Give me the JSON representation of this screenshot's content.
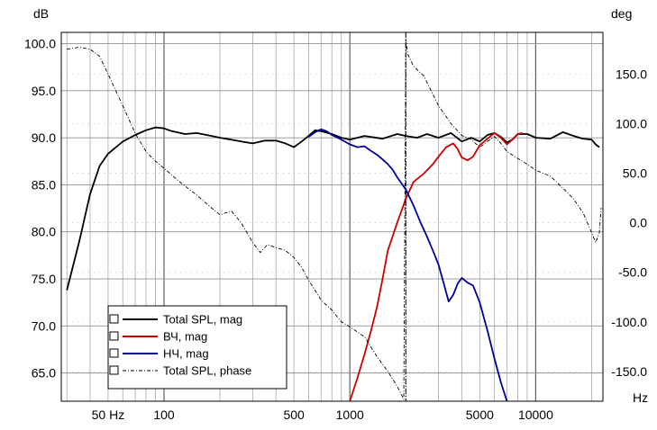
{
  "chart_data": {
    "type": "line",
    "x_axis": {
      "scale": "log",
      "range": [
        28,
        23000
      ],
      "unit_label": "Hz",
      "tick_labels": [
        {
          "value": 50,
          "label": "50 Hz"
        },
        {
          "value": 100,
          "label": "100"
        },
        {
          "value": 500,
          "label": "500"
        },
        {
          "value": 1000,
          "label": "1000"
        },
        {
          "value": 5000,
          "label": "5000"
        },
        {
          "value": 10000,
          "label": "10000"
        }
      ]
    },
    "y_left": {
      "unit_label": "dB",
      "range": [
        62,
        101.2
      ],
      "ticks": [
        65,
        70,
        75,
        80,
        85,
        90,
        95,
        100
      ],
      "tick_labels": [
        "65.0",
        "70.0",
        "75.0",
        "80.0",
        "85.0",
        "90.0",
        "95.0",
        "100.0"
      ]
    },
    "y_right": {
      "unit_label": "deg",
      "range": [
        -180,
        192
      ],
      "ticks": [
        -150,
        -100,
        -50,
        0,
        50,
        100,
        150
      ],
      "tick_labels": [
        "-150.0",
        "-100.0",
        "-50.0",
        "0.0",
        "50.0",
        "100.0",
        "150.0"
      ]
    },
    "grid": true,
    "cursor_x": 2000,
    "legend_position": "bottom-left",
    "series": [
      {
        "name": "Total SPL, mag",
        "axis": "left",
        "color": "#000000",
        "points": [
          [
            30,
            73.8
          ],
          [
            35,
            79
          ],
          [
            40,
            84
          ],
          [
            45,
            87
          ],
          [
            50,
            88.3
          ],
          [
            60,
            89.6
          ],
          [
            70,
            90.3
          ],
          [
            80,
            90.8
          ],
          [
            90,
            91.1
          ],
          [
            100,
            91.0
          ],
          [
            110,
            90.7
          ],
          [
            130,
            90.4
          ],
          [
            150,
            90.5
          ],
          [
            180,
            90.2
          ],
          [
            200,
            90.0
          ],
          [
            230,
            89.8
          ],
          [
            260,
            89.6
          ],
          [
            300,
            89.4
          ],
          [
            350,
            89.7
          ],
          [
            400,
            89.7
          ],
          [
            450,
            89.4
          ],
          [
            500,
            89.0
          ],
          [
            550,
            89.6
          ],
          [
            600,
            90.2
          ],
          [
            650,
            90.8
          ],
          [
            700,
            90.7
          ],
          [
            800,
            90.4
          ],
          [
            900,
            90.0
          ],
          [
            1000,
            89.8
          ],
          [
            1200,
            90.2
          ],
          [
            1500,
            89.9
          ],
          [
            1800,
            90.4
          ],
          [
            2000,
            90.2
          ],
          [
            2300,
            90.0
          ],
          [
            2600,
            90.4
          ],
          [
            3000,
            90.0
          ],
          [
            3500,
            90.5
          ],
          [
            4000,
            89.6
          ],
          [
            4500,
            90.0
          ],
          [
            5000,
            89.6
          ],
          [
            5500,
            90.3
          ],
          [
            6000,
            90.5
          ],
          [
            6500,
            90.1
          ],
          [
            7000,
            89.5
          ],
          [
            7500,
            89.8
          ],
          [
            8000,
            90.4
          ],
          [
            9000,
            90.4
          ],
          [
            10000,
            90.0
          ],
          [
            12000,
            89.9
          ],
          [
            14000,
            90.6
          ],
          [
            16000,
            90.2
          ],
          [
            18000,
            89.9
          ],
          [
            20000,
            89.8
          ],
          [
            21000,
            89.3
          ],
          [
            22000,
            89.0
          ]
        ]
      },
      {
        "name": "ВЧ, mag",
        "axis": "left",
        "color": "#cc0000",
        "points": [
          [
            1000,
            62.0
          ],
          [
            1100,
            64.5
          ],
          [
            1200,
            67.0
          ],
          [
            1300,
            69.5
          ],
          [
            1400,
            72.0
          ],
          [
            1500,
            75.0
          ],
          [
            1600,
            78.0
          ],
          [
            1800,
            81.0
          ],
          [
            2000,
            83.5
          ],
          [
            2200,
            85.3
          ],
          [
            2500,
            86.2
          ],
          [
            2800,
            87.2
          ],
          [
            3000,
            88.0
          ],
          [
            3300,
            89.0
          ],
          [
            3600,
            89.4
          ],
          [
            3800,
            88.8
          ],
          [
            4000,
            87.9
          ],
          [
            4300,
            87.6
          ],
          [
            4600,
            88.0
          ],
          [
            5000,
            89.2
          ],
          [
            5500,
            89.9
          ],
          [
            6000,
            90.5
          ],
          [
            6500,
            90.0
          ],
          [
            7000,
            89.3
          ],
          [
            7500,
            89.8
          ],
          [
            8000,
            90.4
          ],
          [
            8500,
            90.5
          ]
        ]
      },
      {
        "name": "НЧ, mag",
        "axis": "left",
        "color": "#000099",
        "points": [
          [
            600,
            90.1
          ],
          [
            650,
            90.6
          ],
          [
            700,
            90.9
          ],
          [
            750,
            90.7
          ],
          [
            800,
            90.3
          ],
          [
            900,
            89.8
          ],
          [
            1000,
            89.3
          ],
          [
            1100,
            89.0
          ],
          [
            1200,
            89.1
          ],
          [
            1300,
            88.6
          ],
          [
            1400,
            88.2
          ],
          [
            1500,
            87.7
          ],
          [
            1600,
            87.2
          ],
          [
            1700,
            86.6
          ],
          [
            1800,
            85.8
          ],
          [
            2000,
            84.5
          ],
          [
            2200,
            82.8
          ],
          [
            2400,
            81.0
          ],
          [
            2600,
            79.5
          ],
          [
            2800,
            78.0
          ],
          [
            3000,
            76.5
          ],
          [
            3200,
            74.5
          ],
          [
            3400,
            72.6
          ],
          [
            3600,
            73.3
          ],
          [
            3800,
            74.5
          ],
          [
            4000,
            75.1
          ],
          [
            4300,
            74.6
          ],
          [
            4600,
            74.3
          ],
          [
            5000,
            72.5
          ],
          [
            5500,
            69.5
          ],
          [
            6000,
            66.5
          ],
          [
            6500,
            64.0
          ],
          [
            7000,
            62.0
          ]
        ]
      },
      {
        "name": "Total SPL, phase",
        "axis": "right",
        "color": "#000000",
        "dashed": true,
        "points": [
          [
            30,
            175
          ],
          [
            35,
            177
          ],
          [
            40,
            175
          ],
          [
            45,
            168
          ],
          [
            50,
            150
          ],
          [
            60,
            118
          ],
          [
            70,
            90
          ],
          [
            80,
            72
          ],
          [
            90,
            62
          ],
          [
            100,
            55
          ],
          [
            120,
            42
          ],
          [
            150,
            28
          ],
          [
            180,
            15
          ],
          [
            200,
            8
          ],
          [
            230,
            12
          ],
          [
            260,
            0
          ],
          [
            300,
            -20
          ],
          [
            330,
            -30
          ],
          [
            360,
            -22
          ],
          [
            400,
            -25
          ],
          [
            450,
            -28
          ],
          [
            500,
            -35
          ],
          [
            550,
            -45
          ],
          [
            600,
            -58
          ],
          [
            700,
            -78
          ],
          [
            800,
            -88
          ],
          [
            900,
            -100
          ],
          [
            1000,
            -105
          ],
          [
            1200,
            -115
          ],
          [
            1400,
            -135
          ],
          [
            1600,
            -150
          ],
          [
            1800,
            -165
          ],
          [
            1950,
            -178
          ],
          [
            2000,
            185
          ],
          [
            2050,
            170
          ],
          [
            2200,
            158
          ],
          [
            2500,
            148
          ],
          [
            3000,
            118
          ],
          [
            3500,
            100
          ],
          [
            4000,
            88
          ],
          [
            4500,
            84
          ],
          [
            5000,
            76
          ],
          [
            5500,
            82
          ],
          [
            6000,
            87
          ],
          [
            6500,
            80
          ],
          [
            7000,
            72
          ],
          [
            8000,
            65
          ],
          [
            9000,
            59
          ],
          [
            10000,
            53
          ],
          [
            12000,
            47
          ],
          [
            14000,
            35
          ],
          [
            16000,
            24
          ],
          [
            18000,
            10
          ],
          [
            20000,
            -10
          ],
          [
            21000,
            -20
          ],
          [
            22000,
            -10
          ],
          [
            22500,
            15
          ]
        ]
      }
    ]
  }
}
